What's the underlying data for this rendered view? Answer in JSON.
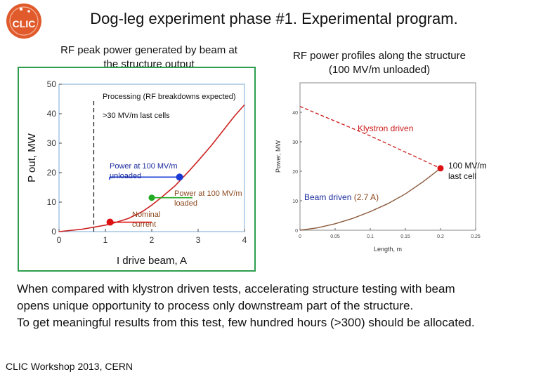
{
  "slide": {
    "title": "Dog-leg experiment phase #1. Experimental program.",
    "logo_text": "CLIC",
    "footer": "CLIC Workshop 2013, CERN",
    "body": [
      "When compared with klystron driven tests, accelerating structure testing with beam",
      "opens unique opportunity  to process only downstream part of the structure.",
      "To get meaningful results from this test, few hundred hours (>300) should be allocated."
    ],
    "colors": {
      "logo": "#e05a2b",
      "curve": "#cc2222",
      "blue_point": "#1a3ad6",
      "green_point": "#22aa22",
      "red_point": "#dd1111",
      "green_frame": "#2e9e4e",
      "plot_frame": "#7aa7d6"
    }
  },
  "chart_data": [
    {
      "type": "line",
      "subtitle": "RF peak power generated by beam at the structure output",
      "xlabel": "I drive beam, A",
      "ylabel": "P out, MW",
      "xlim": [
        0,
        4
      ],
      "ylim": [
        0,
        50
      ],
      "xticks": [
        "0",
        "1",
        "2",
        "3",
        "4"
      ],
      "yticks": [
        "0",
        "10",
        "20",
        "30",
        "40",
        "50"
      ],
      "series": [
        {
          "x": [
            0,
            0.5,
            1.0,
            1.2,
            1.5,
            1.8,
            2.0,
            2.2,
            2.5,
            2.8,
            3.0,
            3.3,
            3.6,
            3.8,
            4.0
          ],
          "y": [
            0,
            0.8,
            2.2,
            3.0,
            4.5,
            6.8,
            9.0,
            11.5,
            15.5,
            20.5,
            24.0,
            29.5,
            35.5,
            39.5,
            43.0
          ]
        }
      ],
      "threshold_x": 0.75,
      "annotations": [
        {
          "text": "Processing (RF breakdowns expected)"
        },
        {
          "text": ">30 MV/m last cells"
        },
        {
          "lines": [
            "Power at 100 MV/m",
            "unloaded"
          ],
          "point": [
            2.6,
            18.5
          ],
          "color": "#1a3ad6"
        },
        {
          "lines": [
            "Power at 100 MV/m",
            "loaded"
          ],
          "point": [
            2.0,
            11.5
          ],
          "color": "#22aa22"
        },
        {
          "lines": [
            "Nominal",
            "current"
          ],
          "point": [
            1.1,
            3.2
          ],
          "color": "#dd1111"
        }
      ]
    },
    {
      "type": "line",
      "subtitle": "RF power profiles along the structure (100 MV/m unloaded)",
      "xlabel": "Length, m",
      "ylabel": "Power, MW",
      "xlim": [
        0,
        0.25
      ],
      "ylim": [
        0,
        50
      ],
      "xticks": [
        "0",
        "0.05",
        "0.1",
        "0.15",
        "0.2",
        "0.25"
      ],
      "yticks": [
        "0",
        "10",
        "20",
        "30",
        "40"
      ],
      "series": [
        {
          "name": "Klystron driven",
          "x": [
            0,
            0.05,
            0.1,
            0.15,
            0.2
          ],
          "y": [
            42,
            37,
            32,
            26.5,
            21
          ],
          "color": "#cc2222",
          "dash": true
        },
        {
          "name": "Beam driven (2.7 A)",
          "x": [
            0,
            0.025,
            0.05,
            0.075,
            0.1,
            0.125,
            0.15,
            0.175,
            0.2
          ],
          "y": [
            0,
            0.8,
            2.2,
            4.0,
            6.3,
            9.0,
            12.3,
            16.4,
            21
          ],
          "color": "#8b5a3c",
          "dash": false
        }
      ],
      "annotations": [
        {
          "text": "Klystron driven"
        },
        {
          "text": "Beam driven",
          "suffix": " (2.7 A)"
        },
        {
          "lines": [
            "100 MV/m",
            "last cell"
          ],
          "point": [
            0.2,
            21
          ]
        }
      ]
    }
  ]
}
